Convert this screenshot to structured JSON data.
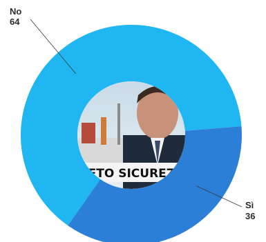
{
  "chart_data": {
    "type": "pie",
    "donut": true,
    "categories": [
      "No",
      "Sì"
    ],
    "values": [
      64,
      36
    ],
    "colors": [
      "#1fb6f2",
      "#2b7fd6"
    ],
    "title": "",
    "center_image": {
      "description": "photo",
      "banner_text": "RETO SICUREZZ"
    }
  }
}
